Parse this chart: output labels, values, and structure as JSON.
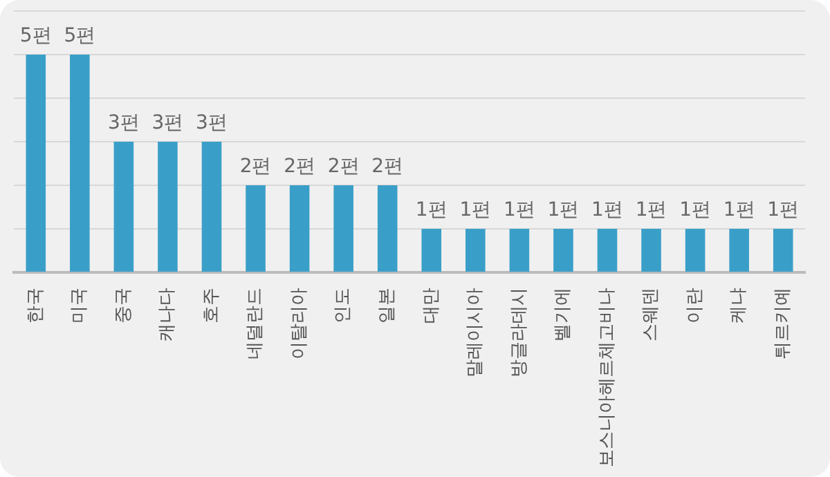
{
  "chart_data": {
    "type": "bar",
    "categories": [
      "한국",
      "미국",
      "중국",
      "캐나다",
      "호주",
      "네덜란드",
      "이탈리아",
      "인도",
      "일본",
      "대만",
      "말레이시아",
      "방글라데시",
      "벨기에",
      "보스니아헤르체고비나",
      "스웨덴",
      "이란",
      "케냐",
      "튀르키예"
    ],
    "values": [
      5,
      5,
      3,
      3,
      3,
      2,
      2,
      2,
      2,
      1,
      1,
      1,
      1,
      1,
      1,
      1,
      1,
      1
    ],
    "value_labels": [
      "5편",
      "5편",
      "3편",
      "3편",
      "3편",
      "2편",
      "2편",
      "2편",
      "2편",
      "1편",
      "1편",
      "1편",
      "1편",
      "1편",
      "1편",
      "1편",
      "1편",
      "1편"
    ],
    "color": "#3a9fc8",
    "ylim": [
      0,
      6
    ],
    "yticks": [
      {
        "value": 0,
        "label": null
      },
      {
        "value": 1,
        "label": null
      },
      {
        "value": 2,
        "label": null
      },
      {
        "value": 3,
        "label": null
      },
      {
        "value": 4,
        "label": null
      },
      {
        "value": 5,
        "label": null
      },
      {
        "value": 6,
        "label": null
      }
    ],
    "grid": "y",
    "tick_labels": "x",
    "legend": false
  }
}
